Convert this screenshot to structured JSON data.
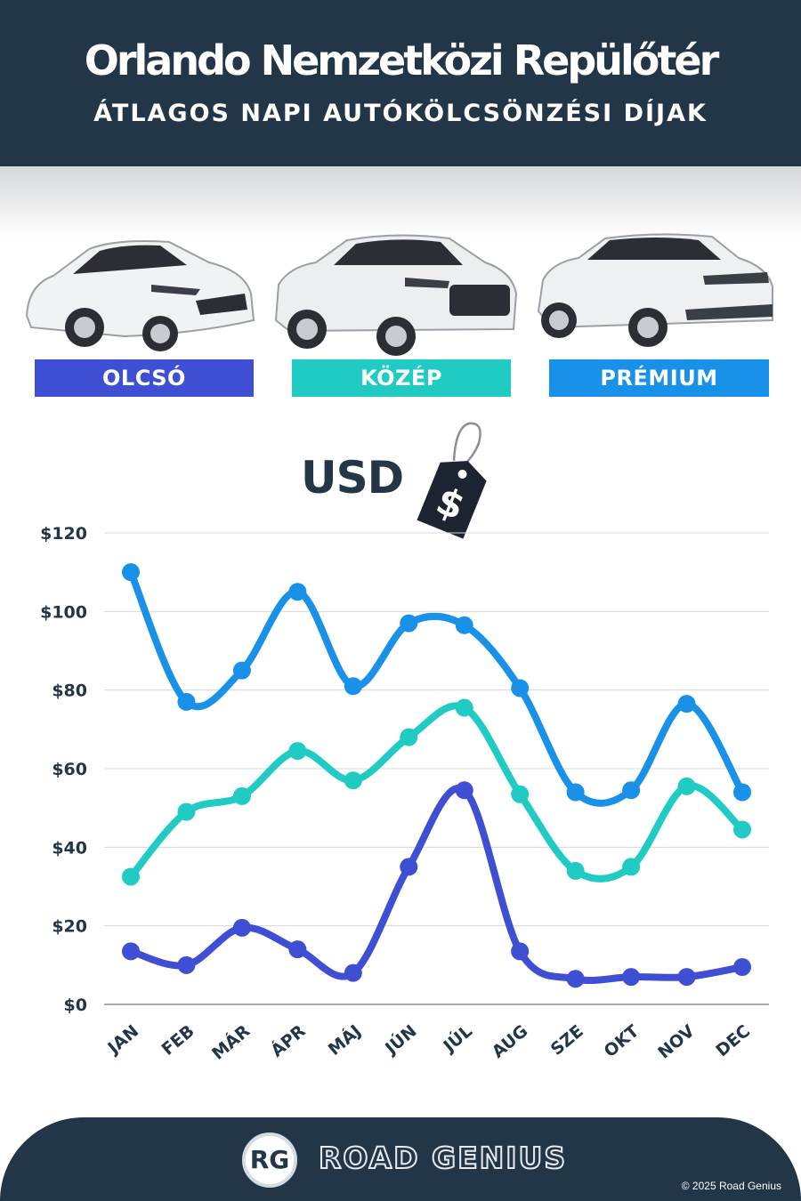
{
  "header": {
    "title": "Orlando Nemzetközi Repülőtér",
    "subtitle": "ÁTLAGOS NAPI AUTÓKÖLCSÖNZÉSI DÍJAK"
  },
  "categories": [
    {
      "label": "OLCSÓ",
      "color": "#3f4fd3"
    },
    {
      "label": "KÖZÉP",
      "color": "#20cbc4"
    },
    {
      "label": "PRÉMIUM",
      "color": "#1a91e8"
    }
  ],
  "currency": {
    "label": "USD",
    "tag_symbol": "$"
  },
  "chart_data": {
    "type": "line",
    "categories": [
      "JAN",
      "FEB",
      "MÁR",
      "ÁPR",
      "MÁJ",
      "JÚN",
      "JÚL",
      "AUG",
      "SZE",
      "OKT",
      "NOV",
      "DEC"
    ],
    "series": [
      {
        "name": "PRÉMIUM",
        "color": "#1a91e8",
        "values": [
          110,
          77,
          85,
          105,
          81,
          97,
          96.5,
          80.5,
          54,
          54.5,
          76.5,
          54
        ]
      },
      {
        "name": "KÖZÉP",
        "color": "#20cbc4",
        "values": [
          32.5,
          49,
          53,
          64.5,
          57,
          68,
          75.5,
          53.5,
          34,
          35,
          55.5,
          44.5
        ]
      },
      {
        "name": "OLCSÓ",
        "color": "#3f4fd3",
        "values": [
          13.5,
          10,
          19.5,
          14,
          8,
          35,
          54.5,
          13.5,
          6.5,
          7,
          7,
          9.5
        ]
      }
    ],
    "ylim": [
      0,
      120
    ],
    "yticks": [
      0,
      20,
      40,
      60,
      80,
      100,
      120
    ],
    "ytick_labels": [
      "$0",
      "$20",
      "$40",
      "$60",
      "$80",
      "$100",
      "$120"
    ],
    "grid": true
  },
  "footer": {
    "logo_mark": "RG",
    "brand": "ROAD GENIUS",
    "copyright": "© 2025 Road Genius"
  }
}
